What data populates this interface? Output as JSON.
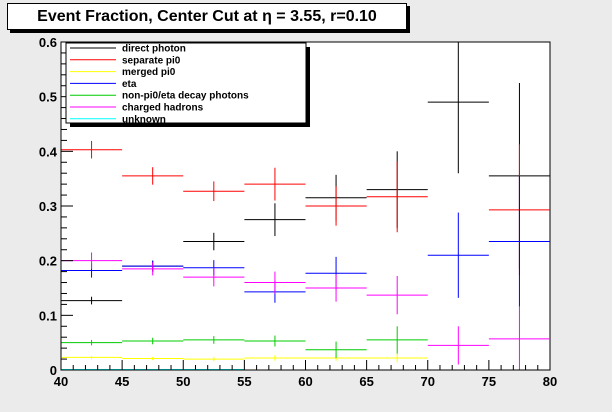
{
  "chart_data": {
    "type": "scatter",
    "title": "Event Fraction, Center Cut at η = 3.55, r=0.10",
    "xlabel": "",
    "ylabel": "",
    "xlim": [
      40,
      80
    ],
    "ylim": [
      0,
      0.6
    ],
    "x_ticks": [
      40,
      45,
      50,
      55,
      60,
      65,
      70,
      75,
      80
    ],
    "y_ticks": [
      0,
      0.1,
      0.2,
      0.3,
      0.4,
      0.5,
      0.6
    ],
    "x_tick_labels": [
      "40",
      "45",
      "50",
      "55",
      "60",
      "65",
      "70",
      "75",
      "80"
    ],
    "y_tick_labels": [
      "0",
      "0.1",
      "0.2",
      "0.3",
      "0.4",
      "0.5",
      "0.6"
    ],
    "x_bin_width": 5,
    "grid": false,
    "legend_position": "top-left",
    "series": [
      {
        "name": "direct photon",
        "color": "#000000",
        "x": [
          42.5,
          47.5,
          52.5,
          57.5,
          62.5,
          67.5,
          72.5,
          77.5
        ],
        "values": [
          0.127,
          0.19,
          0.235,
          0.275,
          0.315,
          0.33,
          0.49,
          0.355
        ],
        "errors": [
          0.007,
          0.01,
          0.016,
          0.03,
          0.042,
          0.07,
          0.13,
          0.17
        ]
      },
      {
        "name": "separate pi0",
        "color": "#ff0000",
        "x": [
          42.5,
          47.5,
          52.5,
          57.5,
          62.5,
          67.5,
          72.5,
          77.5
        ],
        "values": [
          0.403,
          0.355,
          0.327,
          0.34,
          0.3,
          0.317,
          null,
          0.293
        ],
        "errors": [
          0.016,
          0.016,
          0.018,
          0.03,
          0.036,
          0.065,
          null,
          0.12
        ]
      },
      {
        "name": "merged pi0",
        "color": "#ffff00",
        "x": [
          42.5,
          47.5,
          52.5,
          57.5,
          62.5,
          67.5
        ],
        "values": [
          0.023,
          0.021,
          0.02,
          0.022,
          0.022,
          0.022
        ],
        "errors": [
          0.003,
          0.003,
          0.004,
          0.005,
          0.005,
          0.008
        ]
      },
      {
        "name": "eta",
        "color": "#0000ff",
        "x": [
          42.5,
          47.5,
          52.5,
          57.5,
          62.5,
          67.5,
          72.5,
          77.5
        ],
        "values": [
          0.182,
          0.19,
          0.187,
          0.143,
          0.177,
          null,
          0.21,
          0.235
        ],
        "errors": [
          0.013,
          0.01,
          0.014,
          0.02,
          0.03,
          null,
          0.078,
          0.12
        ]
      },
      {
        "name": "non-pi0/eta decay photons",
        "color": "#00cc00",
        "x": [
          42.5,
          47.5,
          52.5,
          57.5,
          62.5,
          67.5
        ],
        "values": [
          0.05,
          0.053,
          0.055,
          0.053,
          0.037,
          0.055
        ],
        "errors": [
          0.005,
          0.006,
          0.007,
          0.01,
          0.015,
          0.025
        ]
      },
      {
        "name": "charged hadrons",
        "color": "#ff00ff",
        "x": [
          42.5,
          47.5,
          52.5,
          57.5,
          62.5,
          67.5,
          72.5,
          77.5
        ],
        "values": [
          0.2,
          0.185,
          0.17,
          0.16,
          0.15,
          0.137,
          0.045,
          0.057
        ],
        "errors": [
          0.015,
          0.012,
          0.017,
          0.02,
          0.025,
          0.035,
          0.035,
          0.06
        ]
      },
      {
        "name": "unknown",
        "color": "#00ffff",
        "x": [
          42.5,
          47.5,
          52.5
        ],
        "values": [
          0.001,
          0.001,
          0.001
        ],
        "errors": [
          0,
          0,
          0
        ]
      }
    ]
  }
}
